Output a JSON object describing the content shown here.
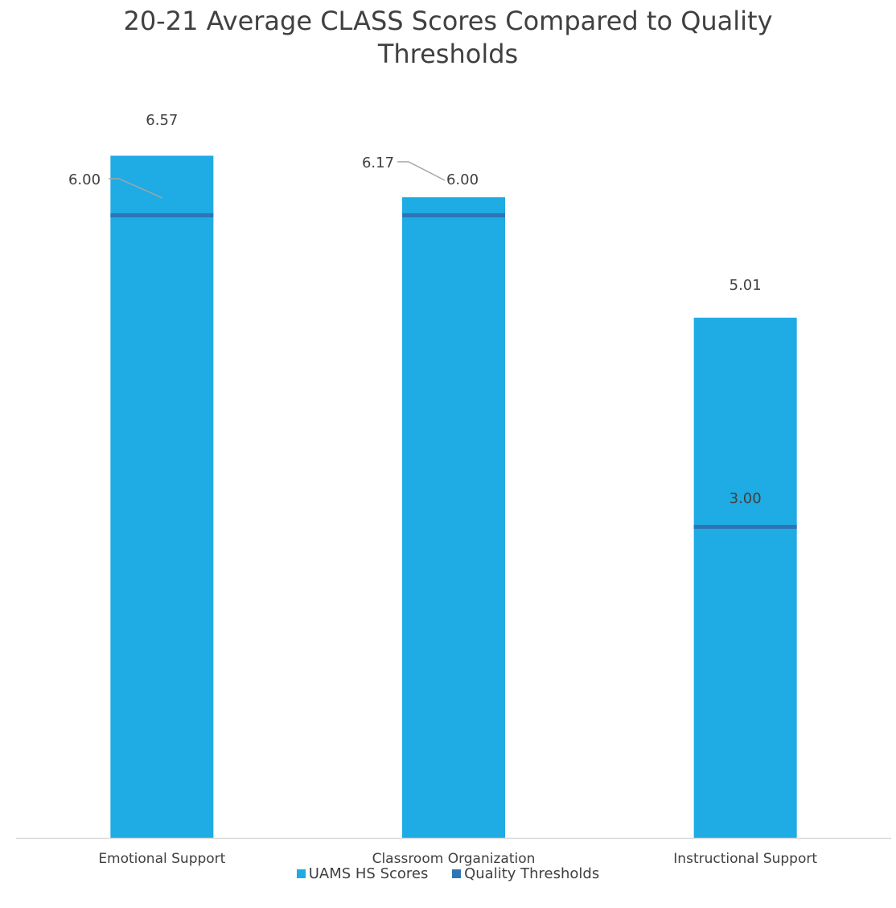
{
  "chart_data": {
    "type": "bar",
    "title_line1": "20-21 Average CLASS Scores Compared to Quality",
    "title_line2": "Thresholds",
    "categories": [
      "Emotional Support",
      "Classroom Organization",
      "Instructional Support"
    ],
    "series": [
      {
        "name": "UAMS HS Scores",
        "values": [
          6.57,
          6.17,
          5.01
        ],
        "labels": [
          "6.57",
          "6.17",
          "5.01"
        ],
        "color": "#1FABE3",
        "mark": "bar"
      },
      {
        "name": "Quality Thresholds",
        "values": [
          6.0,
          6.0,
          3.0
        ],
        "labels": [
          "6.00",
          "6.00",
          "3.00"
        ],
        "color": "#2E75B6",
        "mark": "threshold-line"
      }
    ],
    "ylim": [
      0,
      7
    ],
    "grid": false,
    "legend_position": "bottom",
    "axis_color": "#D9D9D9",
    "leader_line_color": "#A6A6A6"
  }
}
